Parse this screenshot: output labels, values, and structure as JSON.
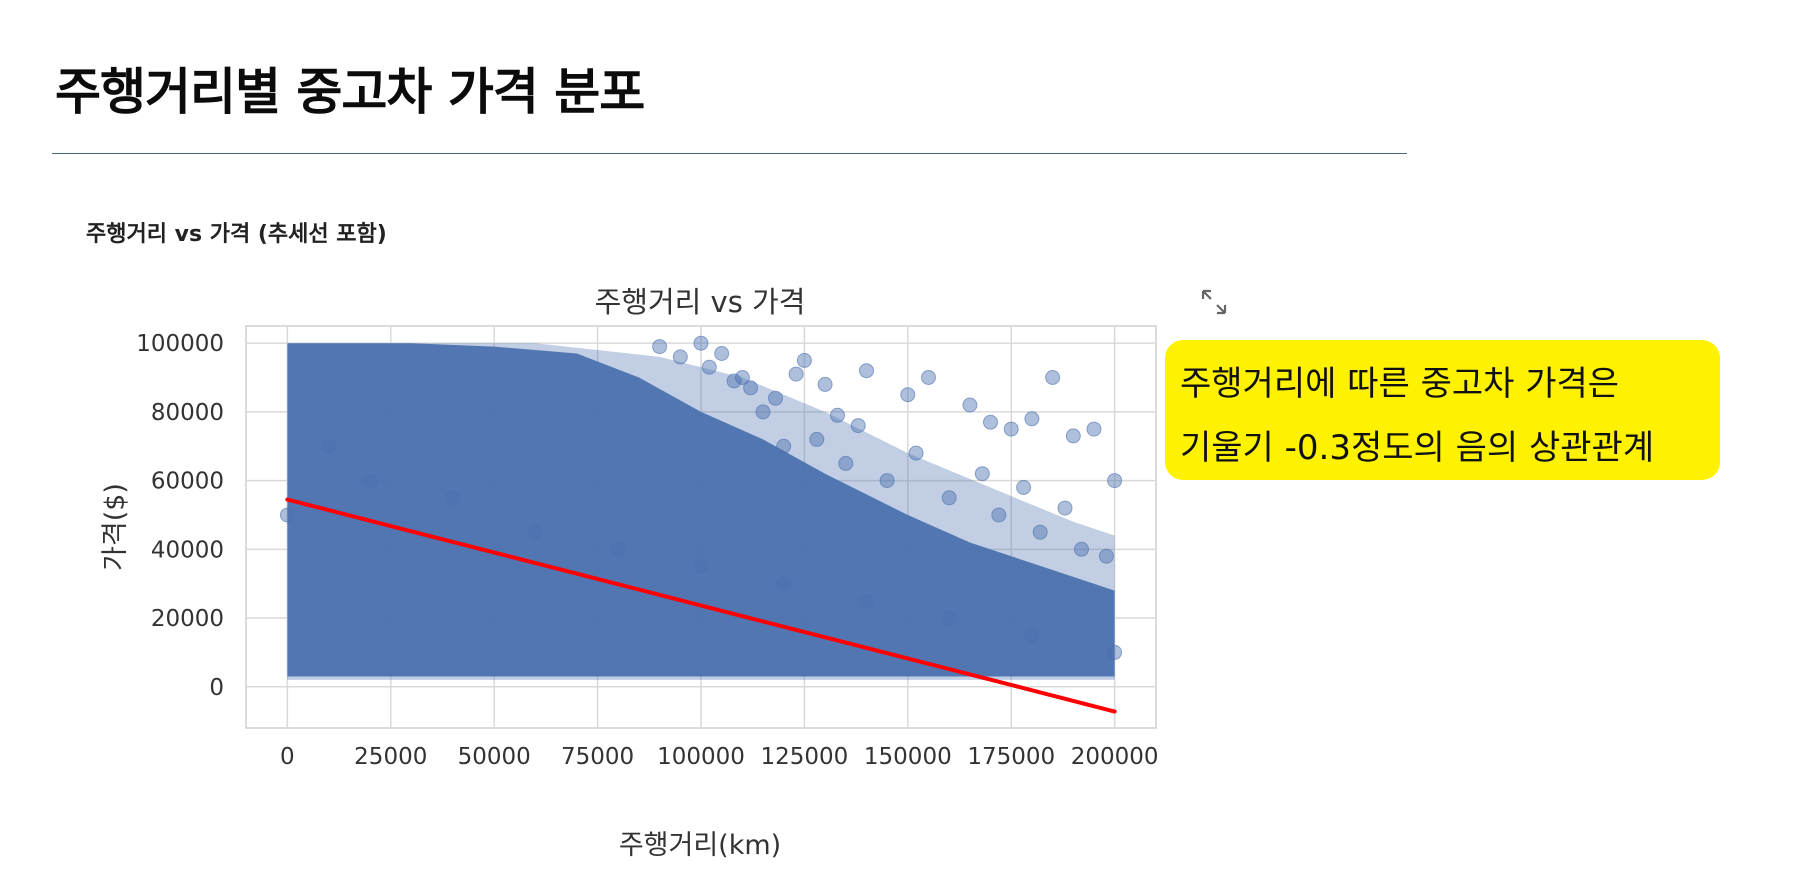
{
  "page": {
    "title": "주행거리별 중고차 가격 분포",
    "caption": "주행거리 vs 가격 (추세선 포함)"
  },
  "callout": {
    "line1": "주행거리에 따른 중고차 가격은",
    "line2": "기울기 -0.3정도의 음의 상관관계"
  },
  "icons": {
    "expand": "expand-arrows-icon"
  },
  "colors": {
    "scatter": "#4c72b0",
    "trend": "#ff0000",
    "callout_bg": "#fff200",
    "rule": "#4a6787"
  },
  "chart_data": {
    "type": "scatter",
    "title": "주행거리 vs 가격",
    "xlabel": "주행거리(km)",
    "ylabel": "가격($)",
    "xlim": [
      -10000,
      210000
    ],
    "ylim": [
      -12000,
      105000
    ],
    "xticks": [
      0,
      25000,
      50000,
      75000,
      100000,
      125000,
      150000,
      175000,
      200000
    ],
    "yticks": [
      0,
      20000,
      40000,
      60000,
      80000,
      100000
    ],
    "grid": true,
    "series": [
      {
        "kind": "points",
        "color": "#4c72b0",
        "x": [
          0,
          20000,
          60000,
          100000,
          140000,
          180000,
          200000,
          160000,
          120000,
          80000,
          40000,
          10000,
          105000,
          110000,
          125000,
          130000,
          140000,
          150000,
          155000,
          165000,
          170000,
          175000,
          180000,
          185000,
          190000,
          195000,
          200000,
          120000,
          135000,
          145000,
          160000,
          172000,
          182000,
          192000,
          198000,
          115000,
          128000,
          152000,
          168000,
          178000,
          188000,
          90000,
          95000,
          100000,
          102000,
          108000,
          112000,
          118000,
          123000,
          133000,
          138000
        ],
        "y": [
          50000,
          60000,
          45000,
          35000,
          25000,
          15000,
          10000,
          20000,
          30000,
          40000,
          55000,
          70000,
          97000,
          90000,
          95000,
          88000,
          92000,
          85000,
          90000,
          82000,
          77000,
          75000,
          78000,
          90000,
          73000,
          75000,
          60000,
          70000,
          65000,
          60000,
          55000,
          50000,
          45000,
          40000,
          38000,
          80000,
          72000,
          68000,
          62000,
          58000,
          52000,
          99000,
          96000,
          100000,
          93000,
          89000,
          87000,
          84000,
          91000,
          79000,
          76000
        ]
      },
      {
        "kind": "trend",
        "color": "#ff0000",
        "x": [
          0,
          200000
        ],
        "y": [
          54500,
          -7200
        ]
      }
    ]
  }
}
